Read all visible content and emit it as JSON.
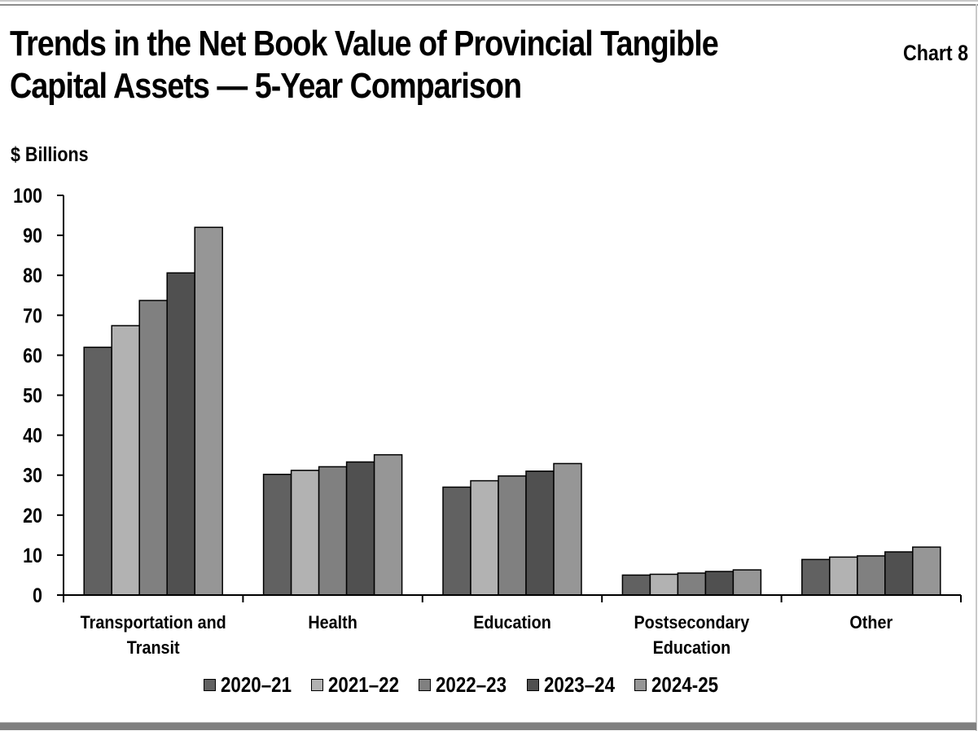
{
  "header": {
    "title_line1": "Trends in the Net Book Value of Provincial Tangible",
    "title_line2": "Capital Assets — 5-Year Comparison",
    "chart_number": "Chart 8",
    "unit_label": "$ Billions"
  },
  "legend": [
    {
      "label": "2020–21",
      "color": "#616161"
    },
    {
      "label": "2021–22",
      "color": "#b2b2b2"
    },
    {
      "label": "2022–23",
      "color": "#808080"
    },
    {
      "label": "2023–24",
      "color": "#505050"
    },
    {
      "label": "2024-25",
      "color": "#969696"
    }
  ],
  "chart_data": {
    "type": "bar",
    "title": "Trends in the Net Book Value of Provincial Tangible Capital Assets — 5-Year Comparison",
    "xlabel": "",
    "ylabel": "$ Billions",
    "ylim": [
      0,
      100
    ],
    "yticks": [
      0,
      10,
      20,
      30,
      40,
      50,
      60,
      70,
      80,
      90,
      100
    ],
    "grid": false,
    "legend_position": "bottom",
    "categories": [
      [
        "Transportation and",
        "Transit"
      ],
      [
        "Health"
      ],
      [
        "Education"
      ],
      [
        "Postsecondary",
        "Education"
      ],
      [
        "Other"
      ]
    ],
    "series": [
      {
        "name": "2020–21",
        "color": "#616161",
        "values": [
          62.0,
          30.2,
          27.0,
          5.0,
          8.9
        ]
      },
      {
        "name": "2021–22",
        "color": "#b2b2b2",
        "values": [
          67.4,
          31.2,
          28.6,
          5.2,
          9.5
        ]
      },
      {
        "name": "2022–23",
        "color": "#808080",
        "values": [
          73.7,
          32.1,
          29.8,
          5.5,
          9.8
        ]
      },
      {
        "name": "2023–24",
        "color": "#505050",
        "values": [
          80.6,
          33.3,
          31.0,
          5.9,
          10.8
        ]
      },
      {
        "name": "2024-25",
        "color": "#969696",
        "values": [
          92.0,
          35.1,
          32.9,
          6.3,
          12.0
        ]
      }
    ]
  }
}
